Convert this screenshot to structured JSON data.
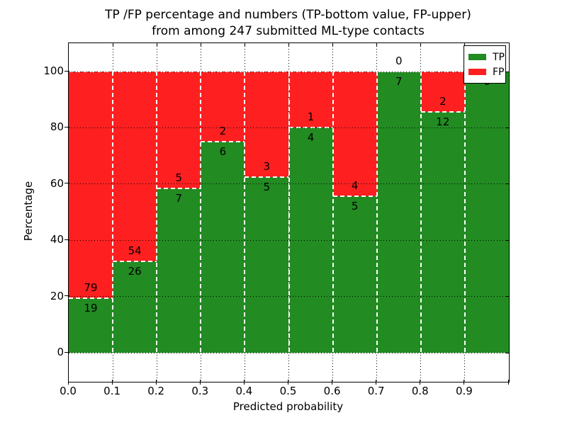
{
  "title": {
    "line1": "TP /FP percentage and numbers (TP-bottom value, FP-upper)",
    "line2": "from among 247 submitted ML-type contacts"
  },
  "axes": {
    "xlabel": "Predicted probability",
    "ylabel": "Percentage",
    "ytick_labels": [
      "0",
      "20",
      "40",
      "60",
      "80",
      "100"
    ],
    "ytick_values": [
      0,
      20,
      40,
      60,
      80,
      100
    ],
    "xtick_labels": [
      "0.0",
      "0.1",
      "0.2",
      "0.3",
      "0.4",
      "0.5",
      "0.6",
      "0.7",
      "0.8",
      "0.9"
    ],
    "xtick_values": [
      0.0,
      0.1,
      0.2,
      0.3,
      0.4,
      0.5,
      0.6,
      0.7,
      0.8,
      0.9
    ],
    "xlim": [
      0.0,
      1.0
    ],
    "ylim": [
      -10,
      110
    ]
  },
  "legend": {
    "position": "upper-right",
    "items": [
      {
        "label": "TP",
        "color": "#228B22"
      },
      {
        "label": "FP",
        "color": "#FE2020"
      }
    ]
  },
  "colors": {
    "tp": "#228B22",
    "fp": "#FE2020",
    "bar_edge": "#FFFFFF",
    "grid": "#000000",
    "background": "#FFFFFF"
  },
  "chart_data": {
    "type": "bar",
    "stacking": "percent",
    "title": "TP /FP percentage and numbers (TP-bottom value, FP-upper) from among 247 submitted ML-type contacts",
    "xlabel": "Predicted probability",
    "ylabel": "Percentage",
    "total_contacts": 247,
    "bin_edges": [
      0.0,
      0.1,
      0.2,
      0.3,
      0.4,
      0.5,
      0.6,
      0.7,
      0.8,
      0.9,
      1.0
    ],
    "bin_width": 0.1,
    "series": [
      {
        "name": "TP",
        "color": "#228B22",
        "values": [
          19,
          26,
          7,
          6,
          5,
          4,
          5,
          7,
          12,
          6
        ]
      },
      {
        "name": "FP",
        "color": "#FE2020",
        "values": [
          79,
          54,
          5,
          2,
          3,
          1,
          4,
          0,
          2,
          0
        ]
      }
    ],
    "tp_percent": [
      19.4,
      32.5,
      58.3,
      75.0,
      62.5,
      80.0,
      55.6,
      100.0,
      85.7,
      100.0
    ],
    "ylim": [
      -10,
      110
    ],
    "yticks": [
      0,
      20,
      40,
      60,
      80,
      100
    ],
    "grid": "dotted black gridlines on both axes; bars have white dashed edges",
    "legend_position": "upper right"
  }
}
